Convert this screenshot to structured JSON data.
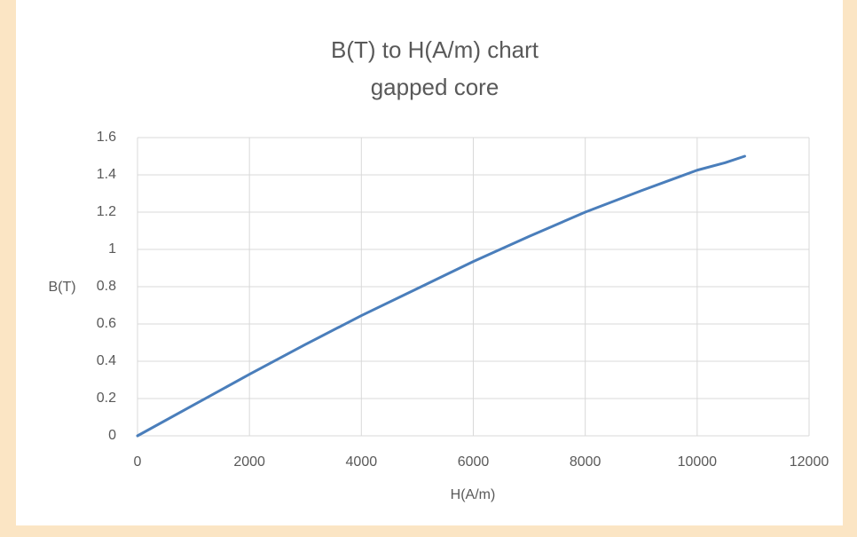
{
  "chart_data": {
    "type": "line",
    "title": "B(T) to H(A/m) chart",
    "subtitle": "gapped core",
    "x_label": "H(A/m)",
    "y_label": "B(T)",
    "x": [
      0,
      1000,
      2000,
      3000,
      4000,
      5000,
      6000,
      7000,
      8000,
      9000,
      9500,
      10000,
      10500,
      10850
    ],
    "values": [
      0,
      0.165,
      0.33,
      0.49,
      0.645,
      0.79,
      0.935,
      1.07,
      1.2,
      1.315,
      1.37,
      1.425,
      1.465,
      1.5
    ],
    "color": "#4a7ebb",
    "xlim": [
      0,
      12000
    ],
    "xticks": [
      0,
      2000,
      4000,
      6000,
      8000,
      10000,
      12000
    ],
    "ylim": [
      0,
      1.6
    ],
    "yticks": [
      0,
      0.2,
      0.4,
      0.6,
      0.8,
      1,
      1.2,
      1.4,
      1.6
    ],
    "grid": true
  }
}
